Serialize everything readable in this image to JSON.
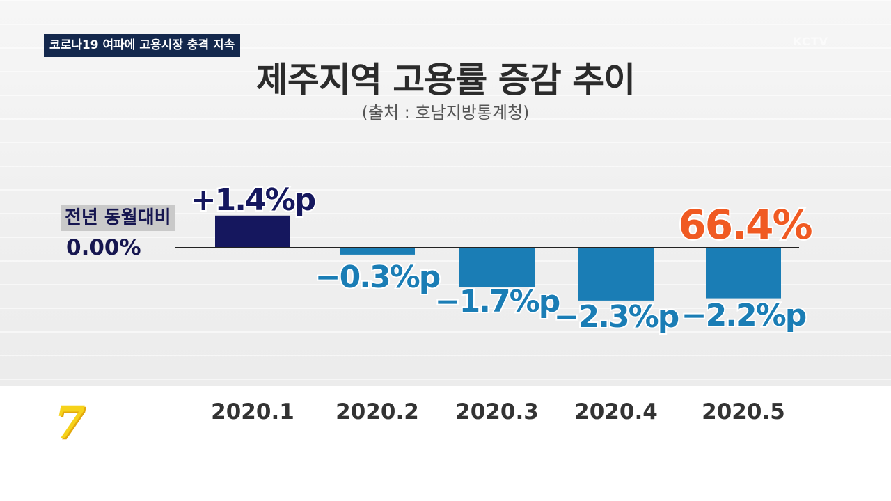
{
  "header": {
    "topic_badge": "코로나19 여파에 고용시장 충격 지속",
    "station_mark": "KCTV"
  },
  "logo": {
    "glyph": "7"
  },
  "colors": {
    "positive_bar": "#15175e",
    "negative_bar": "#1a7db5",
    "highlight": "#f05a22",
    "baseline": "#222222"
  },
  "chart_data": {
    "type": "bar",
    "title": "제주지역 고용률 증감 추이",
    "subtitle": "(출처 : 호남지방통계청)",
    "xlabel": "",
    "ylabel": "전년 동월대비",
    "baseline_label": "전년 동월대비",
    "baseline_value_label": "0.00%",
    "categories": [
      "2020.1",
      "2020.2",
      "2020.3",
      "2020.4",
      "2020.5"
    ],
    "values": [
      1.4,
      -0.3,
      -1.7,
      -2.3,
      -2.2
    ],
    "value_labels": [
      "+1.4%p",
      "−0.3%p",
      "−1.7%p",
      "−2.3%p",
      "−2.2%p"
    ],
    "ylim": [
      -2.5,
      1.5
    ],
    "annotation": {
      "text": "66.4%",
      "category": "2020.5"
    }
  }
}
